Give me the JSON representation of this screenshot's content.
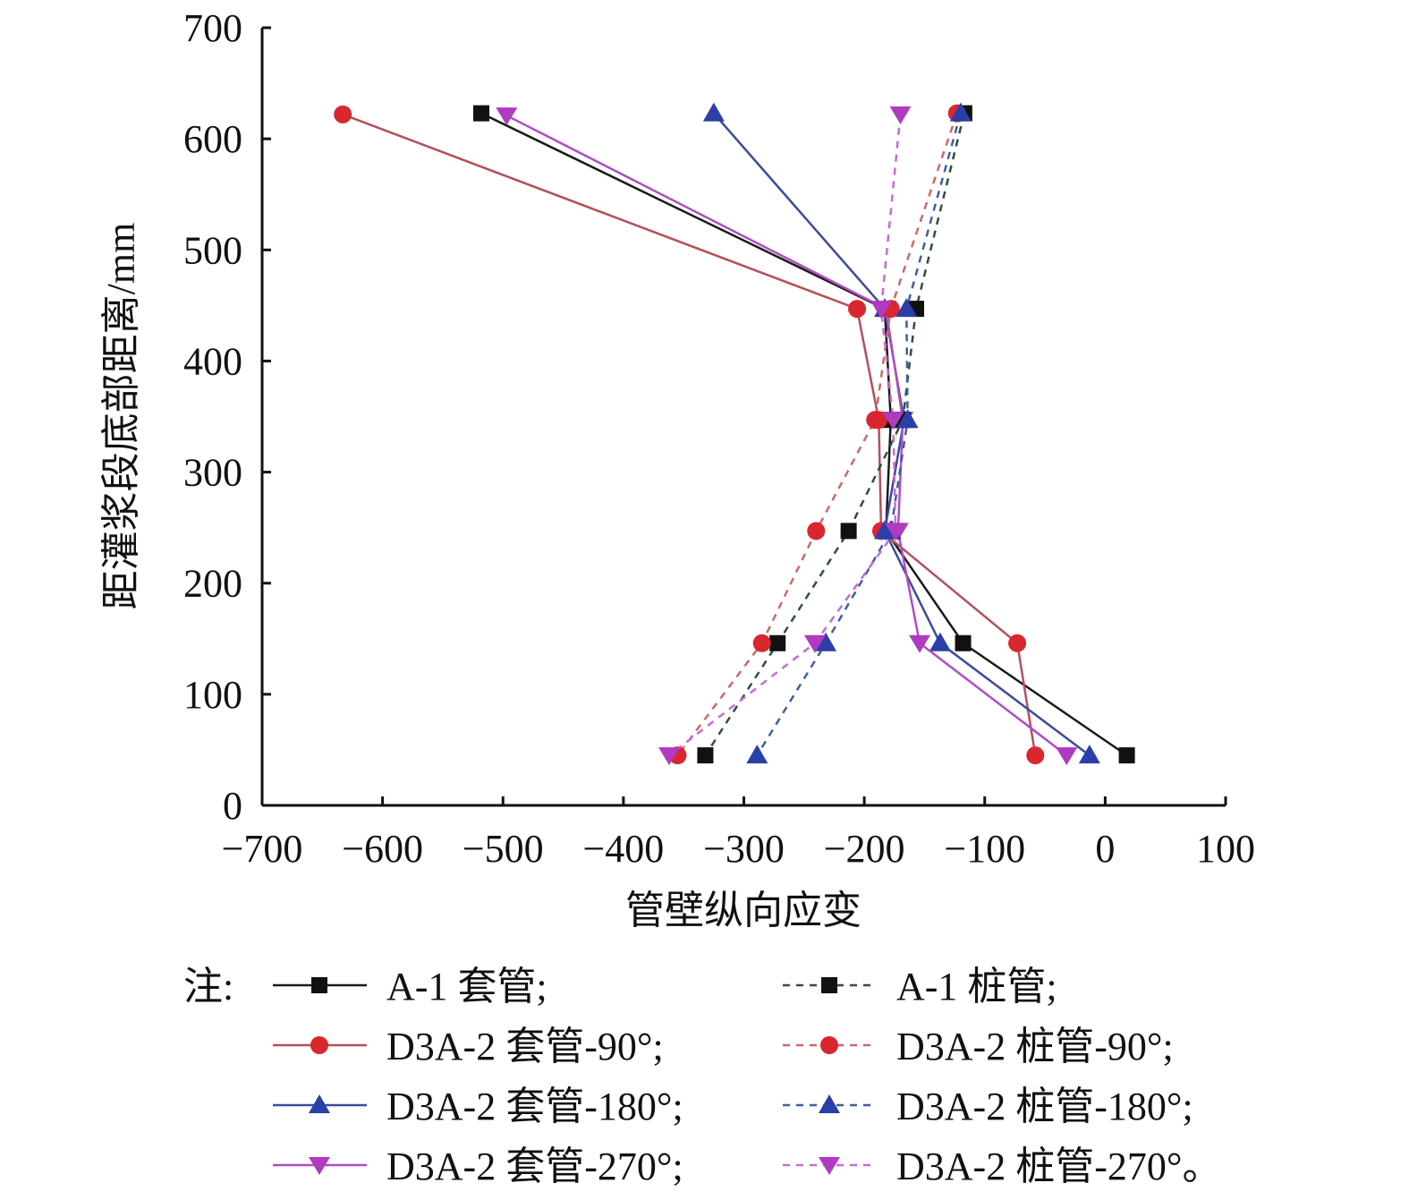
{
  "chart_data": {
    "type": "line",
    "xlabel": "管壁纵向应变",
    "ylabel": "距灌浆段底部距离/mm",
    "xlim": [
      -700,
      100
    ],
    "ylim": [
      0,
      700
    ],
    "x_ticks": [
      "−700",
      "−600",
      "−500",
      "−400",
      "−300",
      "−200",
      "−100",
      "0",
      "100"
    ],
    "y_ticks": [
      "0",
      "100",
      "200",
      "300",
      "400",
      "500",
      "600",
      "700"
    ],
    "x_tick_values": [
      -700,
      -600,
      -500,
      -400,
      -300,
      -200,
      -100,
      0,
      100
    ],
    "y_tick_values": [
      0,
      100,
      200,
      300,
      400,
      500,
      600,
      700
    ],
    "grid": false,
    "legend_position": "bottom",
    "legend_prefix": "注:",
    "series": [
      {
        "name": "A-1 套管;",
        "color": "#1a1a1a",
        "marker": "square",
        "dash": "solid",
        "points": [
          [
            -518,
            623
          ],
          [
            -183,
            447
          ],
          [
            -178,
            347
          ],
          [
            -182,
            247
          ],
          [
            -118,
            146
          ],
          [
            18,
            45
          ]
        ]
      },
      {
        "name": "D3A-2 套管-90°;",
        "color": "#b4505a",
        "marker": "circle",
        "dash": "solid",
        "points": [
          [
            -633,
            622
          ],
          [
            -206,
            447
          ],
          [
            -188,
            347
          ],
          [
            -186,
            247
          ],
          [
            -73,
            146
          ],
          [
            -58,
            45
          ]
        ]
      },
      {
        "name": "D3A-2 套管-180°;",
        "color": "#3b4a9a",
        "marker": "triangle-up",
        "dash": "solid",
        "points": [
          [
            -325,
            623
          ],
          [
            -183,
            447
          ],
          [
            -167,
            347
          ],
          [
            -183,
            247
          ],
          [
            -137,
            146
          ],
          [
            -13,
            45
          ]
        ]
      },
      {
        "name": "D3A-2 套管-270°;",
        "color": "#b04cc4",
        "marker": "triangle-down",
        "dash": "solid",
        "points": [
          [
            -497,
            621
          ],
          [
            -182,
            447
          ],
          [
            -168,
            347
          ],
          [
            -172,
            247
          ],
          [
            -154,
            146
          ],
          [
            -32,
            45
          ]
        ]
      },
      {
        "name": "A-1 桩管;",
        "color": "#2f4f3f",
        "marker": "square",
        "dash": "dashed",
        "points": [
          [
            -117,
            623
          ],
          [
            -157,
            447
          ],
          [
            -168,
            347
          ],
          [
            -213,
            247
          ],
          [
            -272,
            146
          ],
          [
            -332,
            45
          ]
        ]
      },
      {
        "name": "D3A-2 桩管-90°;",
        "color": "#c86a6a",
        "marker": "circle",
        "dash": "dashed",
        "points": [
          [
            -123,
            623
          ],
          [
            -178,
            447
          ],
          [
            -191,
            347
          ],
          [
            -240,
            247
          ],
          [
            -285,
            146
          ],
          [
            -355,
            45
          ]
        ]
      },
      {
        "name": "D3A-2 桩管-180°;",
        "color": "#3e5f9e",
        "marker": "triangle-up",
        "dash": "dashed",
        "points": [
          [
            -120,
            623
          ],
          [
            -165,
            447
          ],
          [
            -164,
            347
          ],
          [
            -178,
            247
          ],
          [
            -232,
            146
          ],
          [
            -289,
            45
          ]
        ]
      },
      {
        "name": "D3A-2 桩管-270°。",
        "color": "#c76ad8",
        "marker": "triangle-down",
        "dash": "dashed",
        "points": [
          [
            -170,
            622
          ],
          [
            -186,
            447
          ],
          [
            -176,
            347
          ],
          [
            -174,
            247
          ],
          [
            -241,
            146
          ],
          [
            -362,
            45
          ]
        ]
      }
    ]
  }
}
